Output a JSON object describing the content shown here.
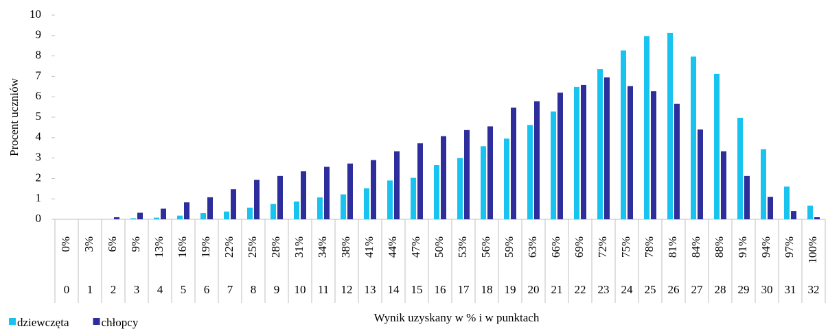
{
  "chart_data": {
    "type": "bar",
    "y_label": "Procent uczniów",
    "x_label": "Wynik uzyskany w % i w punktach",
    "categories": [
      "0%",
      "3%",
      "6%",
      "9%",
      "13%",
      "16%",
      "19%",
      "22%",
      "25%",
      "28%",
      "31%",
      "34%",
      "38%",
      "41%",
      "44%",
      "47%",
      "50%",
      "53%",
      "56%",
      "59%",
      "63%",
      "66%",
      "69%",
      "72%",
      "75%",
      "78%",
      "81%",
      "84%",
      "88%",
      "91%",
      "94%",
      "97%",
      "100%"
    ],
    "points": [
      "0",
      "1",
      "2",
      "3",
      "4",
      "5",
      "6",
      "7",
      "8",
      "9",
      "10",
      "11",
      "12",
      "13",
      "14",
      "15",
      "16",
      "17",
      "18",
      "19",
      "20",
      "21",
      "22",
      "23",
      "24",
      "25",
      "26",
      "27",
      "28",
      "29",
      "30",
      "31",
      "32"
    ],
    "series": [
      {
        "name": "dziewczęta",
        "color": "#19c3f0",
        "values": [
          0,
          0,
          0,
          0.05,
          0.08,
          0.18,
          0.3,
          0.38,
          0.57,
          0.75,
          0.87,
          1.07,
          1.22,
          1.52,
          1.9,
          2.03,
          2.65,
          3.0,
          3.58,
          3.95,
          4.62,
          5.28,
          6.48,
          7.35,
          8.27,
          8.97,
          9.13,
          7.97,
          7.12,
          4.97,
          3.43,
          1.6,
          0.67
        ]
      },
      {
        "name": "chłopcy",
        "color": "#2d2d9c",
        "values": [
          0,
          0,
          0.1,
          0.32,
          0.52,
          0.83,
          1.08,
          1.47,
          1.93,
          2.12,
          2.35,
          2.57,
          2.73,
          2.9,
          3.33,
          3.72,
          4.07,
          4.37,
          4.55,
          5.47,
          5.78,
          6.2,
          6.58,
          6.95,
          6.52,
          6.27,
          5.65,
          4.4,
          3.33,
          2.12,
          1.1,
          0.4,
          0.1
        ]
      }
    ],
    "ylim": [
      0,
      10
    ],
    "yticks": [
      0,
      1,
      2,
      3,
      4,
      5,
      6,
      7,
      8,
      9,
      10
    ],
    "grid": false,
    "legend": "bottom-left"
  }
}
